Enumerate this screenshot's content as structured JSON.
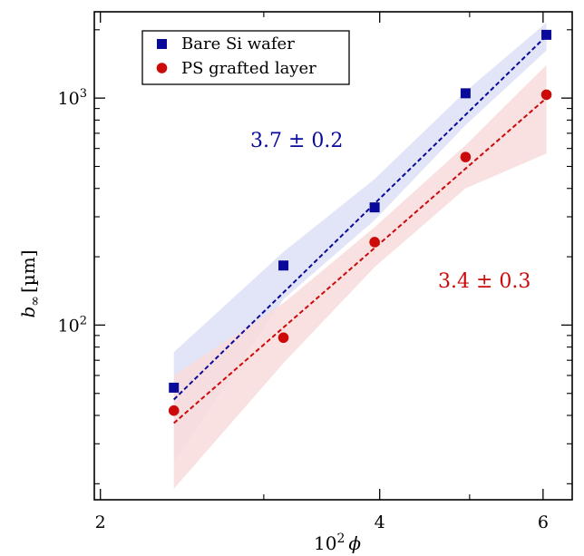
{
  "chart_data": {
    "type": "scatter",
    "xlabel_base": "10",
    "xlabel_exp": "2",
    "xlabel_var": "ϕ",
    "ylabel_main": "b",
    "ylabel_sub": "∞",
    "ylabel_unit": "[µm]",
    "x_scale": "log",
    "y_scale": "log",
    "xlim": [
      1.97,
      6.45
    ],
    "ylim": [
      17,
      2400
    ],
    "x_ticks": [
      {
        "value": 2,
        "label": "2"
      },
      {
        "value": 4,
        "label": "4"
      },
      {
        "value": 6,
        "label": "6"
      }
    ],
    "x_minor_ticks": [
      3,
      5
    ],
    "y_ticks": [
      {
        "value": 100,
        "base": "10",
        "exp": "2"
      },
      {
        "value": 1000,
        "base": "10",
        "exp": "3"
      }
    ],
    "y_minor_ticks": [
      20,
      30,
      40,
      50,
      60,
      70,
      80,
      90,
      200,
      300,
      400,
      500,
      600,
      700,
      800,
      900,
      2000
    ],
    "grid": false,
    "legend_position": "top-left",
    "series": [
      {
        "name": "Bare Si wafer",
        "color": "#0a0a9a",
        "band_color": "#dde0f6",
        "marker": "square",
        "x": [
          2.4,
          3.15,
          3.95,
          4.95,
          6.05
        ],
        "y": [
          53,
          183,
          330,
          1050,
          1900
        ],
        "fit": {
          "x": [
            2.4,
            6.05
          ],
          "y": [
            47,
            1880
          ]
        },
        "band": {
          "x": [
            2.4,
            3.15,
            3.95,
            4.95,
            6.05
          ],
          "upper": [
            76,
            210,
            440,
            1070,
            2150
          ],
          "lower": [
            25,
            130,
            290,
            760,
            1620
          ]
        },
        "annotation": "3.7 ± 0.2"
      },
      {
        "name": "PS grafted layer",
        "color": "#cc0a0a",
        "band_color": "#f9dcdc",
        "marker": "circle",
        "x": [
          2.4,
          3.15,
          3.95,
          4.95,
          6.05
        ],
        "y": [
          42,
          88,
          232,
          550,
          1035
        ],
        "fit": {
          "x": [
            2.4,
            6.05
          ],
          "y": [
            37,
            1000
          ]
        },
        "band": {
          "x": [
            2.4,
            3.15,
            3.95,
            4.95,
            6.05
          ],
          "upper": [
            60,
            125,
            270,
            620,
            1400
          ],
          "lower": [
            19,
            68,
            180,
            400,
            570
          ]
        },
        "annotation": "3.4 ± 0.3"
      }
    ]
  }
}
